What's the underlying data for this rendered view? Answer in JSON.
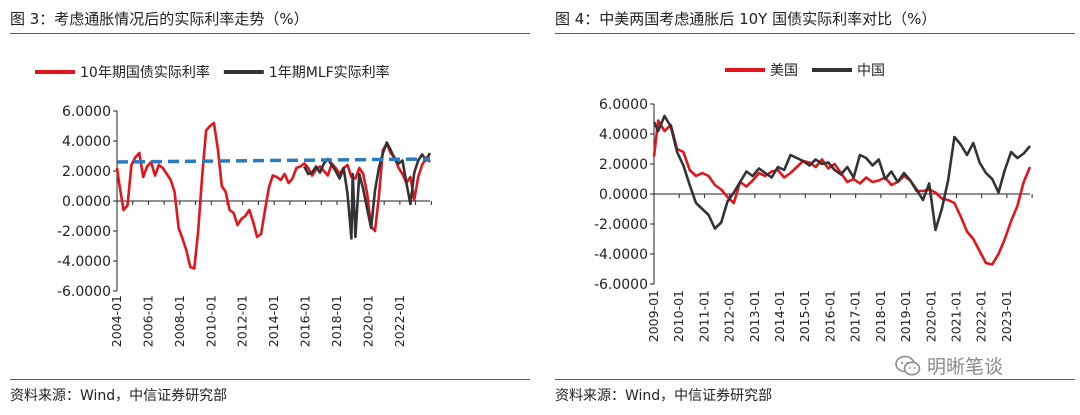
{
  "left": {
    "title": "图 3：考虑通胀情况后的实际利率走势（%）",
    "source": "资料来源：Wind，中信证券研究部"
  },
  "right": {
    "title": "图 4：中美两国考虑通胀后 10Y 国债实际利率对比（%）",
    "source": "资料来源：Wind，中信证券研究部"
  },
  "watermark": {
    "text": "明晰笔谈"
  },
  "colors": {
    "red": "#e3141b",
    "black": "#333333",
    "dashed": "#2a7bbf",
    "rule": "#c9302c"
  },
  "chart_data": [
    {
      "type": "line",
      "title": "",
      "ylim": [
        -6,
        6
      ],
      "y_ticks": [
        "6.0000",
        "4.0000",
        "2.0000",
        "0.0000",
        "-2.0000",
        "-4.0000",
        "-6.0000"
      ],
      "x_ticks": [
        "2004-01",
        "2006-01",
        "2008-01",
        "2010-01",
        "2012-01",
        "2014-01",
        "2016-01",
        "2018-01",
        "2020-01",
        "2022-01"
      ],
      "x_range": [
        "2004-01",
        "2023-12"
      ],
      "legend_position": "top",
      "series": [
        {
          "name": "10年期国债实际利率",
          "color": "#e3141b",
          "x": [
            "2004-01",
            "2004-03",
            "2004-06",
            "2004-09",
            "2004-12",
            "2005-03",
            "2005-06",
            "2005-09",
            "2005-12",
            "2006-03",
            "2006-06",
            "2006-09",
            "2006-12",
            "2007-03",
            "2007-06",
            "2007-09",
            "2007-12",
            "2008-03",
            "2008-06",
            "2008-09",
            "2008-12",
            "2009-03",
            "2009-06",
            "2009-09",
            "2009-12",
            "2010-03",
            "2010-06",
            "2010-09",
            "2010-12",
            "2011-03",
            "2011-06",
            "2011-09",
            "2011-12",
            "2012-03",
            "2012-06",
            "2012-09",
            "2012-12",
            "2013-03",
            "2013-06",
            "2013-09",
            "2013-12",
            "2014-03",
            "2014-06",
            "2014-09",
            "2014-12",
            "2015-03",
            "2015-06",
            "2015-09",
            "2015-12",
            "2016-03",
            "2016-06",
            "2016-09",
            "2016-12",
            "2017-03",
            "2017-06",
            "2017-09",
            "2017-12",
            "2018-03",
            "2018-06",
            "2018-09",
            "2018-12",
            "2019-03",
            "2019-06",
            "2019-09",
            "2019-12",
            "2020-03",
            "2020-06",
            "2020-09",
            "2020-12",
            "2021-03",
            "2021-06",
            "2021-09",
            "2021-12",
            "2022-03",
            "2022-06",
            "2022-09",
            "2022-12",
            "2023-03",
            "2023-06",
            "2023-09",
            "2023-12"
          ],
          "y": [
            2.2,
            1.0,
            -0.6,
            -0.3,
            2.4,
            2.9,
            3.2,
            1.6,
            2.3,
            2.6,
            1.7,
            2.4,
            2.2,
            1.8,
            1.4,
            0.6,
            -1.8,
            -2.5,
            -3.3,
            -4.4,
            -4.5,
            -2.0,
            1.6,
            4.7,
            5.0,
            5.2,
            3.5,
            1.0,
            0.6,
            -0.6,
            -0.8,
            -1.6,
            -1.2,
            -1.0,
            -0.6,
            -1.4,
            -2.4,
            -2.2,
            -0.6,
            0.9,
            1.7,
            1.6,
            1.4,
            1.8,
            1.2,
            1.5,
            2.2,
            2.3,
            2.5,
            2.2,
            1.7,
            2.1,
            2.3,
            2.0,
            1.7,
            2.5,
            2.2,
            1.8,
            2.2,
            2.4,
            1.6,
            1.5,
            2.2,
            1.8,
            0.5,
            -1.7,
            -2.0,
            0.3,
            3.4,
            3.8,
            3.2,
            2.9,
            2.2,
            1.8,
            1.2,
            1.6,
            0.1,
            1.6,
            2.4,
            2.9,
            2.6
          ]
        },
        {
          "name": "1年期MLF实际利率",
          "color": "#333333",
          "x": [
            "2015-12",
            "2016-03",
            "2016-06",
            "2016-09",
            "2016-12",
            "2017-03",
            "2017-06",
            "2017-09",
            "2017-12",
            "2018-03",
            "2018-06",
            "2018-09",
            "2018-12",
            "2019-01",
            "2019-03",
            "2019-06",
            "2019-09",
            "2019-12",
            "2020-03",
            "2020-06",
            "2020-09",
            "2020-12",
            "2021-03",
            "2021-06",
            "2021-09",
            "2021-12",
            "2022-03",
            "2022-06",
            "2022-09",
            "2022-12",
            "2023-03",
            "2023-06",
            "2023-09",
            "2023-12"
          ],
          "y": [
            2.3,
            1.8,
            1.9,
            2.3,
            1.9,
            2.5,
            2.8,
            2.4,
            2.0,
            1.5,
            2.2,
            0.5,
            -2.5,
            1.8,
            -2.4,
            1.8,
            0.8,
            -0.5,
            -1.8,
            0.7,
            2.2,
            3.2,
            3.9,
            3.4,
            2.8,
            2.5,
            2.7,
            1.2,
            -0.2,
            1.9,
            2.7,
            3.1,
            2.7,
            3.2
          ]
        },
        {
          "name": "",
          "style": "dashed",
          "color": "#2a7bbf",
          "x": [
            "2004-01",
            "2023-12"
          ],
          "y": [
            2.6,
            2.8
          ]
        }
      ]
    },
    {
      "type": "line",
      "title": "",
      "ylim": [
        -6,
        6
      ],
      "y_ticks": [
        "6.0000",
        "4.0000",
        "2.0000",
        "0.0000",
        "-2.0000",
        "-4.0000",
        "-6.0000"
      ],
      "x_ticks": [
        "2009-01",
        "2010-01",
        "2011-01",
        "2012-01",
        "2013-01",
        "2014-01",
        "2015-01",
        "2016-01",
        "2017-01",
        "2018-01",
        "2019-01",
        "2020-01",
        "2021-01",
        "2022-01",
        "2023-01"
      ],
      "x_range": [
        "2009-01",
        "2023-12"
      ],
      "legend_position": "top",
      "series": [
        {
          "name": "美国",
          "color": "#e3141b",
          "x": [
            "2009-01",
            "2009-03",
            "2009-06",
            "2009-09",
            "2009-12",
            "2010-03",
            "2010-06",
            "2010-09",
            "2010-12",
            "2011-03",
            "2011-06",
            "2011-09",
            "2011-12",
            "2012-03",
            "2012-06",
            "2012-09",
            "2012-12",
            "2013-03",
            "2013-06",
            "2013-09",
            "2013-12",
            "2014-03",
            "2014-06",
            "2014-09",
            "2014-12",
            "2015-03",
            "2015-06",
            "2015-09",
            "2015-12",
            "2016-03",
            "2016-06",
            "2016-09",
            "2016-12",
            "2017-03",
            "2017-06",
            "2017-09",
            "2017-12",
            "2018-03",
            "2018-06",
            "2018-09",
            "2018-12",
            "2019-03",
            "2019-06",
            "2019-09",
            "2019-12",
            "2020-03",
            "2020-06",
            "2020-09",
            "2020-12",
            "2021-03",
            "2021-06",
            "2021-09",
            "2021-12",
            "2022-03",
            "2022-06",
            "2022-09",
            "2022-12",
            "2023-03",
            "2023-06",
            "2023-09",
            "2023-12"
          ],
          "y": [
            2.5,
            4.9,
            4.2,
            4.6,
            3.0,
            2.8,
            1.6,
            1.2,
            1.4,
            1.2,
            0.6,
            0.3,
            -0.2,
            -0.6,
            0.8,
            0.5,
            0.9,
            1.4,
            1.2,
            1.5,
            1.6,
            1.1,
            1.4,
            1.8,
            2.2,
            2.1,
            1.8,
            2.3,
            1.7,
            2.0,
            1.4,
            0.8,
            1.0,
            0.7,
            1.1,
            0.8,
            0.9,
            1.1,
            0.6,
            0.8,
            1.2,
            0.9,
            0.2,
            0.2,
            0.3,
            0.1,
            -0.3,
            -0.4,
            -0.6,
            -1.5,
            -2.5,
            -3.0,
            -3.8,
            -4.6,
            -4.7,
            -4.0,
            -3.0,
            -1.8,
            -0.8,
            0.8,
            1.8
          ]
        },
        {
          "name": "中国",
          "color": "#333333",
          "x": [
            "2009-01",
            "2009-03",
            "2009-06",
            "2009-09",
            "2009-12",
            "2010-03",
            "2010-06",
            "2010-09",
            "2010-12",
            "2011-03",
            "2011-06",
            "2011-09",
            "2011-12",
            "2012-03",
            "2012-06",
            "2012-09",
            "2012-12",
            "2013-03",
            "2013-06",
            "2013-09",
            "2013-12",
            "2014-03",
            "2014-06",
            "2014-09",
            "2014-12",
            "2015-03",
            "2015-06",
            "2015-09",
            "2015-12",
            "2016-03",
            "2016-06",
            "2016-09",
            "2016-12",
            "2017-03",
            "2017-06",
            "2017-09",
            "2017-12",
            "2018-03",
            "2018-06",
            "2018-09",
            "2018-12",
            "2019-03",
            "2019-06",
            "2019-09",
            "2019-12",
            "2020-03",
            "2020-06",
            "2020-09",
            "2020-12",
            "2021-03",
            "2021-06",
            "2021-09",
            "2021-12",
            "2022-03",
            "2022-06",
            "2022-09",
            "2022-12",
            "2023-03",
            "2023-06",
            "2023-09",
            "2023-12"
          ],
          "y": [
            4.8,
            4.2,
            5.2,
            4.5,
            2.8,
            1.9,
            0.6,
            -0.6,
            -1.0,
            -1.4,
            -2.3,
            -1.9,
            -0.5,
            0.1,
            0.8,
            1.5,
            1.2,
            1.7,
            1.4,
            1.1,
            1.8,
            1.6,
            2.6,
            2.4,
            2.2,
            1.9,
            2.3,
            2.0,
            2.1,
            1.6,
            1.3,
            1.8,
            1.1,
            2.6,
            2.4,
            1.9,
            2.3,
            1.0,
            1.5,
            0.8,
            1.4,
            0.9,
            0.3,
            -0.4,
            0.7,
            -2.4,
            -1.0,
            0.9,
            3.8,
            3.3,
            2.6,
            3.4,
            2.1,
            1.4,
            1.0,
            0.1,
            1.6,
            2.8,
            2.4,
            2.7,
            3.2
          ]
        }
      ]
    }
  ]
}
